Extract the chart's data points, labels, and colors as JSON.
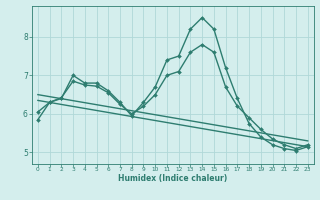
{
  "xlabel": "Humidex (Indice chaleur)",
  "ylabel": "",
  "background_color": "#d4eeed",
  "grid_color": "#b0d8d8",
  "line_color": "#2e7d70",
  "xlim": [
    -0.5,
    23.5
  ],
  "ylim": [
    4.7,
    8.8
  ],
  "xticks": [
    0,
    1,
    2,
    3,
    4,
    5,
    6,
    7,
    8,
    9,
    10,
    11,
    12,
    13,
    14,
    15,
    16,
    17,
    18,
    19,
    20,
    21,
    22,
    23
  ],
  "yticks": [
    5,
    6,
    7,
    8
  ],
  "series": [
    {
      "x": [
        0,
        1,
        2,
        3,
        4,
        5,
        6,
        7,
        8,
        9,
        10,
        11,
        12,
        13,
        14,
        15,
        16,
        17,
        18,
        19,
        20,
        21,
        22,
        23
      ],
      "y": [
        5.85,
        6.3,
        6.4,
        7.0,
        6.8,
        6.8,
        6.6,
        6.3,
        5.95,
        6.3,
        6.7,
        7.4,
        7.5,
        8.2,
        8.5,
        8.2,
        7.2,
        6.4,
        5.75,
        5.4,
        5.2,
        5.1,
        5.05,
        5.15
      ],
      "marker": "D",
      "markersize": 2.0,
      "linewidth": 1.0
    },
    {
      "x": [
        0,
        1,
        2,
        3,
        4,
        5,
        6,
        7,
        8,
        9,
        10,
        11,
        12,
        13,
        14,
        15,
        16,
        17,
        18,
        19,
        20,
        21,
        22,
        23
      ],
      "y": [
        6.05,
        6.3,
        6.42,
        6.85,
        6.75,
        6.72,
        6.55,
        6.25,
        6.0,
        6.2,
        6.5,
        7.0,
        7.1,
        7.6,
        7.8,
        7.6,
        6.7,
        6.2,
        5.9,
        5.6,
        5.35,
        5.2,
        5.1,
        5.2
      ],
      "marker": "D",
      "markersize": 2.0,
      "linewidth": 1.0
    },
    {
      "x": [
        0,
        23
      ],
      "y": [
        6.35,
        5.15
      ],
      "marker": null,
      "markersize": 0,
      "linewidth": 1.0
    },
    {
      "x": [
        0,
        23
      ],
      "y": [
        6.5,
        5.3
      ],
      "marker": null,
      "markersize": 0,
      "linewidth": 1.0
    }
  ]
}
